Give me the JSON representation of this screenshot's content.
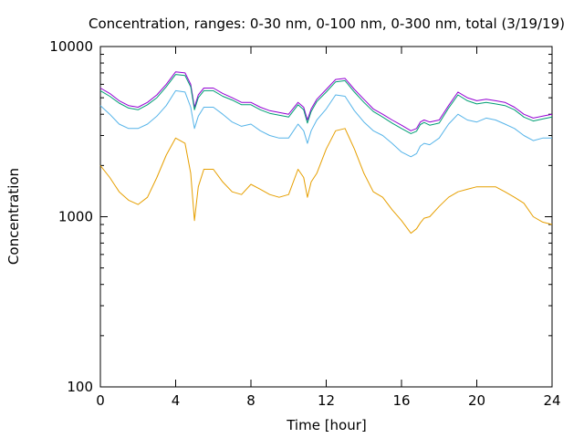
{
  "chart_data": {
    "type": "line",
    "title": "Concentration, ranges: 0-30 nm, 0-100 nm, 0-300 nm, total (3/19/19)",
    "xlabel": "Time [hour]",
    "ylabel": "Concentration",
    "xlim": [
      0,
      24
    ],
    "ylim": [
      100,
      10000
    ],
    "yscale": "log",
    "grid": false,
    "x_ticks": [
      0,
      4,
      8,
      12,
      16,
      20,
      24
    ],
    "x_tick_labels": [
      "0",
      "4",
      "8",
      "12",
      "16",
      "20",
      "24"
    ],
    "y_ticks": [
      100,
      1000,
      10000
    ],
    "y_tick_labels": [
      "100",
      "1000",
      "10000"
    ],
    "x": [
      0,
      0.5,
      1,
      1.5,
      2,
      2.5,
      3,
      3.5,
      4,
      4.5,
      4.8,
      5,
      5.2,
      5.5,
      6,
      6.5,
      7,
      7.5,
      8,
      8.5,
      9,
      9.5,
      10,
      10.5,
      10.8,
      11,
      11.2,
      11.5,
      12,
      12.5,
      13,
      13.5,
      14,
      14.5,
      15,
      15.5,
      16,
      16.5,
      16.8,
      17,
      17.2,
      17.5,
      18,
      18.5,
      19,
      19.5,
      20,
      20.5,
      21,
      21.5,
      22,
      22.5,
      23,
      23.5,
      24
    ],
    "series": [
      {
        "color": "#9400d3",
        "values": [
          5700,
          5300,
          4800,
          4500,
          4400,
          4700,
          5200,
          6000,
          7100,
          7000,
          6000,
          4400,
          5200,
          5700,
          5700,
          5300,
          5000,
          4700,
          4700,
          4400,
          4200,
          4100,
          4000,
          4700,
          4400,
          3700,
          4300,
          4900,
          5600,
          6400,
          6500,
          5600,
          4900,
          4300,
          4000,
          3700,
          3450,
          3200,
          3300,
          3600,
          3700,
          3600,
          3700,
          4500,
          5400,
          5000,
          4800,
          4900,
          4800,
          4700,
          4400,
          4000,
          3800,
          3900,
          4000
        ]
      },
      {
        "color": "#009e73",
        "values": [
          5500,
          5100,
          4650,
          4350,
          4250,
          4550,
          5000,
          5800,
          6850,
          6750,
          5800,
          4250,
          5000,
          5500,
          5500,
          5100,
          4850,
          4550,
          4550,
          4250,
          4050,
          3950,
          3850,
          4550,
          4250,
          3550,
          4150,
          4750,
          5400,
          6200,
          6300,
          5400,
          4700,
          4150,
          3850,
          3550,
          3300,
          3080,
          3180,
          3480,
          3580,
          3450,
          3550,
          4350,
          5200,
          4800,
          4600,
          4700,
          4600,
          4500,
          4250,
          3850,
          3650,
          3750,
          3850
        ]
      },
      {
        "color": "#56b4e9",
        "values": [
          4500,
          4000,
          3500,
          3300,
          3300,
          3500,
          3900,
          4500,
          5500,
          5400,
          4400,
          3300,
          3900,
          4400,
          4400,
          4000,
          3600,
          3400,
          3500,
          3200,
          3000,
          2900,
          2900,
          3500,
          3200,
          2700,
          3200,
          3700,
          4300,
          5200,
          5100,
          4200,
          3600,
          3200,
          3000,
          2700,
          2400,
          2250,
          2350,
          2600,
          2700,
          2650,
          2900,
          3500,
          4000,
          3700,
          3600,
          3800,
          3700,
          3500,
          3300,
          3000,
          2800,
          2900,
          2900
        ]
      },
      {
        "color": "#e69f00",
        "values": [
          2000,
          1700,
          1400,
          1250,
          1180,
          1300,
          1700,
          2300,
          2900,
          2700,
          1800,
          950,
          1500,
          1900,
          1900,
          1600,
          1400,
          1350,
          1550,
          1450,
          1350,
          1300,
          1350,
          1900,
          1700,
          1300,
          1600,
          1800,
          2500,
          3200,
          3300,
          2500,
          1800,
          1400,
          1300,
          1100,
          950,
          800,
          850,
          920,
          980,
          1000,
          1150,
          1300,
          1400,
          1450,
          1500,
          1500,
          1500,
          1400,
          1300,
          1200,
          1000,
          930,
          900
        ]
      }
    ]
  }
}
